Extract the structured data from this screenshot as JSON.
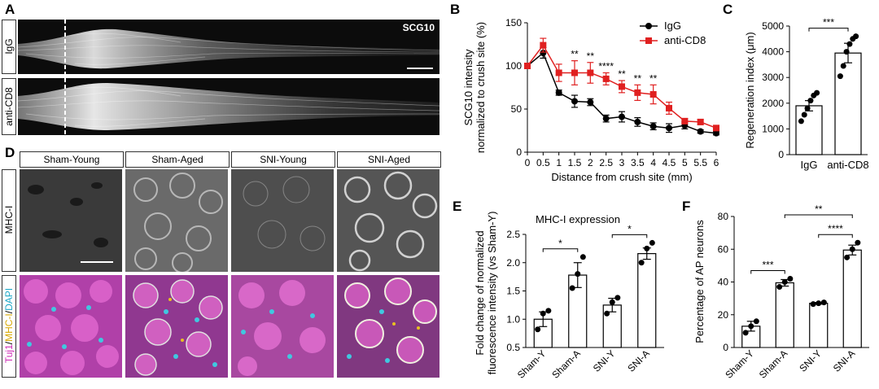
{
  "panels": {
    "A": "A",
    "B": "B",
    "C": "C",
    "D": "D",
    "E": "E",
    "F": "F"
  },
  "panelA": {
    "marker": "SCG10",
    "rows": [
      "IgG",
      "anti-CD8"
    ]
  },
  "panelD": {
    "columns": [
      "Sham-Young",
      "Sham-Aged",
      "SNI-Young",
      "SNI-Aged"
    ],
    "row_labels": {
      "mhc": "MHC-I",
      "merge_parts": [
        "Tuj1",
        "/",
        "MHC-I",
        "/",
        "DAPI"
      ]
    },
    "colors": {
      "tuj1": "#e040c8",
      "mhc": "#e8c020",
      "dapi": "#30c8e0"
    }
  },
  "chart_data": [
    {
      "id": "B",
      "type": "line",
      "title": "",
      "xlabel": "Distance from crush site (mm)",
      "ylabel_lines": [
        "SCG10 intensity",
        "normalized to crush site (%)"
      ],
      "x": [
        0,
        0.5,
        1,
        1.5,
        2,
        2.5,
        3,
        3.5,
        4,
        4.5,
        5,
        5.5,
        6
      ],
      "xticks": [
        "0",
        "0.5",
        "1",
        "1.5",
        "2",
        "2.5",
        "3",
        "3.5",
        "4",
        "4.5",
        "5",
        "5.5",
        "6"
      ],
      "ylim": [
        0,
        150
      ],
      "yticks": [
        0,
        50,
        100,
        150
      ],
      "series": [
        {
          "name": "IgG",
          "color": "#000000",
          "marker": "circle",
          "values": [
            100,
            115,
            69,
            59,
            58,
            39,
            41,
            35,
            30,
            28,
            31,
            24,
            22
          ],
          "err": [
            2,
            6,
            3,
            7,
            4,
            4,
            6,
            5,
            4,
            5,
            4,
            2,
            2
          ]
        },
        {
          "name": "anti-CD8",
          "color": "#e02020",
          "marker": "square",
          "values": [
            100,
            124,
            92,
            92,
            92,
            85,
            76,
            69,
            67,
            51,
            36,
            35,
            28
          ],
          "err": [
            2,
            8,
            10,
            14,
            12,
            7,
            7,
            9,
            11,
            7,
            3,
            3,
            3
          ]
        }
      ],
      "annotations": [
        {
          "x": 1.5,
          "text": "**"
        },
        {
          "x": 2,
          "text": "**"
        },
        {
          "x": 2.5,
          "text": "****"
        },
        {
          "x": 3,
          "text": "**"
        },
        {
          "x": 3.5,
          "text": "**"
        },
        {
          "x": 4,
          "text": "**"
        }
      ],
      "legend": "top-right"
    },
    {
      "id": "C",
      "type": "bar",
      "ylabel": "Regeneration index (μm)",
      "categories": [
        "IgG",
        "anti-CD8"
      ],
      "values": [
        1900,
        3950
      ],
      "err": [
        200,
        380
      ],
      "points": [
        [
          1300,
          1550,
          1800,
          2100,
          2300,
          2400
        ],
        [
          3050,
          3450,
          4000,
          4300,
          4500,
          4600
        ]
      ],
      "ylim": [
        0,
        5000
      ],
      "yticks": [
        0,
        1000,
        2000,
        3000,
        4000,
        5000
      ],
      "significance": [
        {
          "pair": [
            0,
            1
          ],
          "text": "***"
        }
      ]
    },
    {
      "id": "E",
      "type": "bar",
      "title": "MHC-I expression",
      "ylabel_lines": [
        "Fold change of normalized",
        "fluorescence intensity (vs Sham-Y)"
      ],
      "categories": [
        "Sham-Y",
        "Sham-A",
        "SNI-Y",
        "SNI-A"
      ],
      "values": [
        1.0,
        1.78,
        1.25,
        2.16
      ],
      "err": [
        0.13,
        0.22,
        0.12,
        0.1
      ],
      "points": [
        [
          0.82,
          1.1,
          1.15
        ],
        [
          1.55,
          1.8,
          2.1
        ],
        [
          1.1,
          1.3,
          1.38
        ],
        [
          2.0,
          2.25,
          2.35
        ]
      ],
      "ylim": [
        0.5,
        2.5
      ],
      "yticks": [
        "0.5",
        "1.0",
        "1.5",
        "2.0",
        "2.5"
      ],
      "significance": [
        {
          "pair": [
            0,
            1
          ],
          "text": "*"
        },
        {
          "pair": [
            2,
            3
          ],
          "text": "*"
        }
      ]
    },
    {
      "id": "F",
      "type": "bar",
      "ylabel": "Percentage of AP neurons",
      "categories": [
        "Sham-Y",
        "Sham-A",
        "SNI-Y",
        "SNI-A"
      ],
      "values": [
        13,
        39.5,
        27,
        59.5
      ],
      "err": [
        3,
        2,
        0.5,
        3
      ],
      "points": [
        [
          9,
          13,
          16
        ],
        [
          37,
          40,
          42
        ],
        [
          26.5,
          27,
          27.5
        ],
        [
          55,
          60,
          64
        ]
      ],
      "ylim": [
        0,
        80
      ],
      "yticks": [
        0,
        20,
        40,
        60,
        80
      ],
      "significance": [
        {
          "pair": [
            0,
            1
          ],
          "text": "***",
          "level": 1
        },
        {
          "pair": [
            2,
            3
          ],
          "text": "****",
          "level": 1
        },
        {
          "pair": [
            1,
            3
          ],
          "text": "**",
          "level": 2
        }
      ]
    }
  ]
}
